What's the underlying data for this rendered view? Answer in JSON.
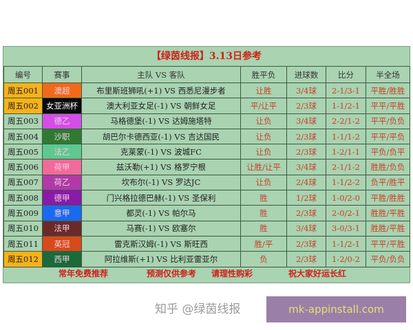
{
  "title": "【绿茵线报】3.13日参考",
  "headers": [
    "编号",
    "赛事",
    "主队 VS 客队",
    "胜平负",
    "进球数",
    "比分",
    "半全场"
  ],
  "rows": [
    {
      "id": "周五001",
      "league": "澳超",
      "match": "布里斯班狮吼(+1) VS 西悉尼漫步者",
      "wdl": "让胜",
      "goals": "3/4球",
      "score": "2-1/3-1",
      "hf": "平胜/胜胜",
      "id_color": "#f7b21a",
      "league_color": "#f06a1a"
    },
    {
      "id": "周五002",
      "league": "女亚洲杯",
      "match": "澳大利亚女足(-1) VS 朝鲜女足",
      "wdl": "平/让平",
      "goals": "2/3球",
      "score": "1-1/2-1",
      "hf": "平平/平胜",
      "id_color": "#f7b21a",
      "league_color": "#0a0a0a"
    },
    {
      "id": "周五003",
      "league": "德乙",
      "match": "马格德堡(-1) VS 达姆施塔特",
      "wdl": "让负",
      "goals": "3/4球",
      "score": "2-2/1-2",
      "hf": "平平/负负",
      "id_color": "",
      "league_color": "#d44ee6"
    },
    {
      "id": "周五004",
      "league": "沙职",
      "match": "胡巴尔卡德西亚(-1) VS 吉达国民",
      "wdl": "让负",
      "goals": "2/3球",
      "score": "1-1/1-2",
      "hf": "平平/平负",
      "id_color": "",
      "league_color": "#2e7a32"
    },
    {
      "id": "周五005",
      "league": "法乙",
      "match": "克莱蒙(-1) VS 波城FC",
      "wdl": "让负",
      "goals": "2/3球",
      "score": "1-2/1-1",
      "hf": "平负/负平",
      "id_color": "",
      "league_color": "#5ec890"
    },
    {
      "id": "周五006",
      "league": "荷甲",
      "match": "兹沃勒(+1) VS 格罗宁根",
      "wdl": "让胜/让平",
      "goals": "3/4球",
      "score": "2-1/1-2",
      "hf": "胜胜/负负",
      "id_color": "",
      "league_color": "#f06a9a"
    },
    {
      "id": "周五007",
      "league": "荷乙",
      "match": "坎布尔(-1) VS 罗达JC",
      "wdl": "让负",
      "goals": "2/4球",
      "score": "1-1/2-2",
      "hf": "负平/胜平",
      "id_color": "",
      "league_color": "#b03aa8"
    },
    {
      "id": "周五008",
      "league": "德甲",
      "match": "门兴格拉德巴赫(-1) VS 圣保利",
      "wdl": "胜",
      "goals": "1/2球",
      "score": "1-0/2-0",
      "hf": "平胜/胜胜",
      "id_color": "",
      "league_color": "#8a1aa8"
    },
    {
      "id": "周五009",
      "league": "意甲",
      "match": "都灵(-1) VS 帕尔马",
      "wdl": "胜",
      "goals": "2/3球",
      "score": "2-0/2-1",
      "hf": "胜胜/平胜",
      "id_color": "",
      "league_color": "#1a6af0"
    },
    {
      "id": "周五010",
      "league": "法甲",
      "match": "马赛(-1) VS 欧塞尔",
      "wdl": "胜",
      "goals": "3/4球",
      "score": "3-0/3-1",
      "hf": "胜胜/平胜",
      "id_color": "",
      "league_color": "#6a2a2a"
    },
    {
      "id": "周五011",
      "league": "英冠",
      "match": "雷克斯汉姆(-1) VS 斯旺西",
      "wdl": "胜/平",
      "goals": "2/3球",
      "score": "1-1/2-1",
      "hf": "平平/平胜",
      "id_color": "",
      "league_color": "#d84a1a"
    },
    {
      "id": "周五012",
      "league": "西甲",
      "match": "阿拉维斯(+1) VS 比利亚雷亚尔",
      "wdl": "负",
      "goals": "2/3球",
      "score": "1-2/0-2",
      "hf": "平负/负负",
      "id_color": "#f7b21a",
      "league_color": "#1a6a3a"
    }
  ],
  "footer": [
    "常年免费推荐",
    "预测仅供参考",
    "请理性购彩",
    "祝大家好运长红"
  ],
  "zhihu_watermark": "知乎 @绿茵线报",
  "site_watermark": "mk-appinstall.com"
}
